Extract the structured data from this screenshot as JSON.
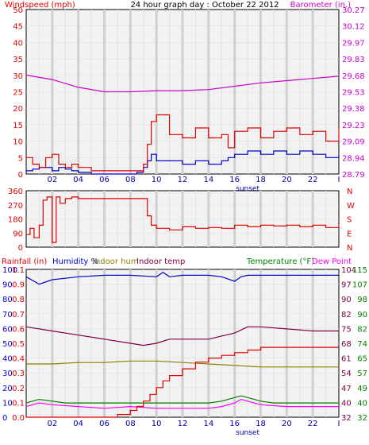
{
  "colors": {
    "wind": "#e00000",
    "gust": "#e00000",
    "baro": "#cc00cc",
    "dir": "#e00000",
    "rain": "#e00000",
    "humidity": "#0000cc",
    "in_hum": "#8b8000",
    "in_temp": "#800040",
    "temp": "#008000",
    "dew": "#ff00ff",
    "plot_bg": "#f2f2f2",
    "grid": "#c8c8c8",
    "day_grid": "#dcdcdc",
    "tick_text": "#0000a0"
  },
  "panel1": {
    "title": "24 hour graph day : October 22 2012",
    "left_label": "Windspeed (mph)",
    "right_label": "Barometer (in.)",
    "sunset_label": "sunset",
    "x_ticks": [
      "02",
      "04",
      "06",
      "08",
      "10",
      "12",
      "14",
      "16",
      "18",
      "20",
      "22",
      "I"
    ],
    "y_left_ticks": [
      "50",
      "45",
      "40",
      "35",
      "30",
      "25",
      "20",
      "15",
      "10",
      "5",
      "0"
    ],
    "y_right_ticks": [
      "30.27",
      "30.12",
      "29.97",
      "29.83",
      "29.68",
      "29.53",
      "29.38",
      "29.23",
      "29.09",
      "28.94",
      "28.79"
    ]
  },
  "panel2": {
    "y_left_ticks": [
      "360",
      "270",
      "180",
      "90",
      "0"
    ],
    "y_right_ticks": [
      "N",
      "W",
      "S",
      "E",
      "N"
    ]
  },
  "panel3": {
    "labels": {
      "rain": "Rainfall (in)",
      "humidity": "Humidity %",
      "in_hum": "Indoor hum",
      "in_temp": "Indoor temp",
      "temp": "Temperature (°F)",
      "dew": "Dew Point"
    },
    "sunset_label": "sunset",
    "x_ticks": [
      "02",
      "04",
      "06",
      "08",
      "10",
      "12",
      "14",
      "16",
      "18",
      "20",
      "22",
      "I"
    ],
    "y_hum_ticks": [
      "100",
      "90",
      "80",
      "70",
      "60",
      "50",
      "40",
      "30",
      "20",
      "10",
      "0"
    ],
    "y_rain_ticks": [
      "1.1",
      "0.9",
      "0.8",
      "0.7",
      "0.6",
      "0.5",
      "0.4",
      "0.3",
      "0.2",
      "0.1",
      "0.0"
    ],
    "y_intemp_ticks": [
      "104",
      "97",
      "90",
      "82",
      "75",
      "68",
      "61",
      "54",
      "47",
      "40",
      "32"
    ],
    "y_temp_ticks": [
      "115",
      "107",
      "98",
      "90",
      "82",
      "74",
      "65",
      "57",
      "49",
      "40",
      "32"
    ]
  },
  "chart_data": [
    {
      "type": "line",
      "title": "24 hour graph day : October 22 2012",
      "xlabel": "",
      "ylabel": "Windspeed (mph)",
      "y2label": "Barometer (in.)",
      "x_range_hours": [
        0,
        24
      ],
      "ylim": [
        0,
        50
      ],
      "y2lim": [
        28.79,
        30.27
      ],
      "series": [
        {
          "name": "Windspeed (mph)",
          "axis": "left",
          "x": [
            0,
            0.5,
            1,
            1.5,
            2,
            2.5,
            3,
            3.5,
            4,
            5,
            6,
            7,
            8,
            8.5,
            9,
            9.3,
            9.6,
            10,
            11,
            12,
            13,
            14,
            15,
            15.5,
            16,
            17,
            18,
            19,
            20,
            21,
            22,
            23,
            24
          ],
          "y": [
            1,
            1.5,
            2,
            2,
            1,
            2,
            1.5,
            1,
            0.5,
            0,
            0,
            0,
            0,
            0.5,
            2,
            4,
            6,
            4,
            4,
            3,
            4,
            3,
            4,
            5,
            6,
            7,
            6,
            7,
            6,
            7,
            6,
            5,
            6
          ]
        },
        {
          "name": "Wind gust",
          "axis": "left",
          "x": [
            0,
            0.5,
            1,
            1.5,
            2,
            2.5,
            3,
            3.5,
            4,
            5,
            6,
            7,
            8,
            8.5,
            9,
            9.3,
            9.6,
            10,
            11,
            12,
            13,
            14,
            15,
            15.5,
            16,
            17,
            18,
            19,
            20,
            21,
            22,
            23,
            24
          ],
          "y": [
            5,
            3,
            2,
            5,
            6,
            3,
            2,
            3,
            2,
            1,
            1,
            1,
            1,
            1,
            3,
            9,
            16,
            18,
            12,
            11,
            14,
            11,
            12,
            8,
            13,
            14,
            11,
            13,
            14,
            12,
            13,
            10,
            14
          ]
        },
        {
          "name": "Barometer (in.)",
          "axis": "right",
          "x": [
            0,
            2,
            4,
            6,
            8,
            10,
            12,
            14,
            16,
            18,
            20,
            22,
            24
          ],
          "y": [
            29.68,
            29.64,
            29.57,
            29.53,
            29.53,
            29.54,
            29.54,
            29.55,
            29.58,
            29.61,
            29.63,
            29.65,
            29.67
          ]
        }
      ]
    },
    {
      "type": "line",
      "title": "",
      "ylabel": "Wind direction",
      "ylim": [
        0,
        360
      ],
      "series": [
        {
          "name": "Wind direction",
          "x": [
            0,
            0.3,
            0.6,
            1,
            1.3,
            1.6,
            2,
            2.3,
            2.6,
            3,
            3.5,
            4,
            5,
            6,
            7,
            8,
            9,
            9.3,
            9.6,
            10,
            11,
            12,
            13,
            14,
            15,
            16,
            17,
            18,
            19,
            20,
            21,
            22,
            23,
            24
          ],
          "y": [
            80,
            120,
            60,
            140,
            300,
            320,
            30,
            320,
            280,
            310,
            320,
            310,
            310,
            310,
            310,
            310,
            310,
            200,
            140,
            120,
            110,
            130,
            120,
            125,
            120,
            140,
            130,
            140,
            135,
            140,
            130,
            140,
            125,
            140
          ]
        }
      ]
    },
    {
      "type": "line",
      "title": "",
      "ylabel": "Rainfall (in)",
      "y_axes": {
        "humidity": [
          0,
          100
        ],
        "rainfall": [
          0.0,
          1.1
        ],
        "indoor_temp": [
          32,
          104
        ],
        "temperature": [
          32,
          115
        ]
      },
      "series": [
        {
          "name": "Humidity %",
          "axis": "humidity",
          "x": [
            0,
            1,
            2,
            3,
            4,
            6,
            8,
            10,
            10.5,
            11,
            12,
            14,
            15,
            16,
            16.5,
            17,
            18,
            20,
            22,
            24
          ],
          "y": [
            95,
            90,
            93,
            94,
            95,
            96,
            96,
            95,
            98,
            95,
            96,
            96,
            95,
            92,
            95,
            96,
            96,
            96,
            96,
            96
          ]
        },
        {
          "name": "Indoor hum",
          "axis": "humidity",
          "x": [
            0,
            2,
            4,
            6,
            8,
            10,
            12,
            14,
            16,
            18,
            20,
            22,
            24
          ],
          "y": [
            36,
            36,
            37,
            37,
            38,
            38,
            37,
            36,
            35,
            34,
            34,
            34,
            34
          ]
        },
        {
          "name": "Indoor temp",
          "axis": "indoor_temp",
          "x": [
            0,
            2,
            4,
            6,
            8,
            9,
            10,
            11,
            12,
            14,
            16,
            17,
            18,
            20,
            22,
            24
          ],
          "y": [
            76,
            74,
            72,
            70,
            68,
            67,
            68,
            70,
            70,
            70,
            73,
            76,
            76,
            75,
            74,
            74
          ]
        },
        {
          "name": "Temperature (°F)",
          "axis": "temperature",
          "x": [
            0,
            1,
            2,
            3,
            4,
            6,
            8,
            10,
            12,
            14,
            15,
            16,
            16.5,
            17,
            18,
            19,
            20,
            22,
            24
          ],
          "y": [
            40,
            42,
            41,
            40,
            40,
            40,
            40,
            40,
            40,
            40,
            41,
            43,
            44,
            43,
            41,
            40,
            40,
            40,
            40
          ]
        },
        {
          "name": "Dew Point",
          "axis": "temperature",
          "x": [
            0,
            1,
            2,
            4,
            6,
            8,
            10,
            12,
            14,
            15,
            16,
            16.5,
            17,
            18,
            20,
            22,
            24
          ],
          "y": [
            38,
            40,
            39,
            38,
            37,
            38,
            37,
            37,
            37,
            38,
            40,
            42,
            41,
            39,
            38,
            38,
            38
          ]
        },
        {
          "name": "Rainfall (in)",
          "axis": "rainfall",
          "x": [
            0,
            6,
            7,
            8,
            8.5,
            9,
            9.5,
            10,
            10.5,
            11,
            12,
            13,
            14,
            15,
            16,
            17,
            18,
            20,
            22,
            24
          ],
          "y": [
            0.0,
            0.0,
            0.02,
            0.05,
            0.08,
            0.12,
            0.17,
            0.22,
            0.27,
            0.31,
            0.36,
            0.41,
            0.44,
            0.46,
            0.48,
            0.5,
            0.52,
            0.52,
            0.52,
            0.52
          ]
        }
      ]
    }
  ]
}
